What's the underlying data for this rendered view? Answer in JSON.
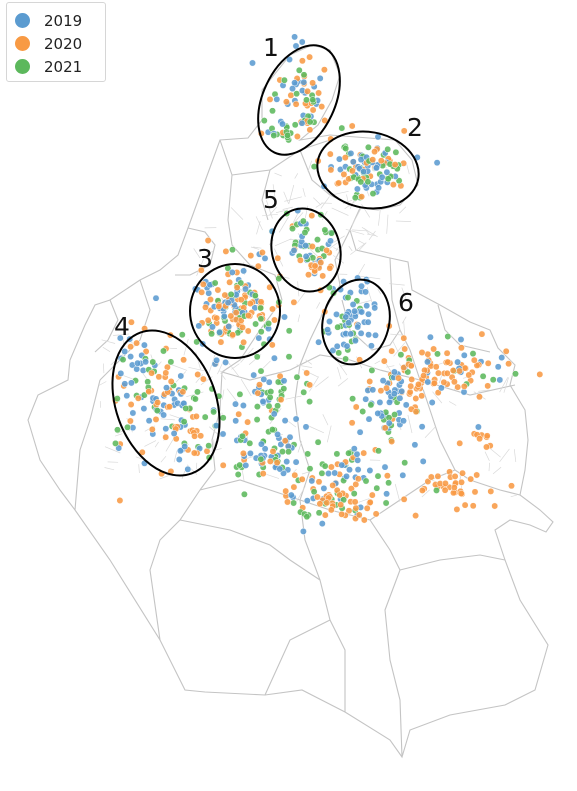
{
  "legend": {
    "items": [
      {
        "label": "2019",
        "color": "#5b9bd0"
      },
      {
        "label": "2020",
        "color": "#f89a44"
      },
      {
        "label": "2021",
        "color": "#5cb85c"
      }
    ]
  },
  "clusters": [
    {
      "label": "1"
    },
    {
      "label": "2"
    },
    {
      "label": "3"
    },
    {
      "label": "4"
    },
    {
      "label": "5"
    },
    {
      "label": "6"
    }
  ],
  "colors": {
    "boundary": "#c4c4c4",
    "ellipse": "#000000",
    "background": "#ffffff"
  }
}
